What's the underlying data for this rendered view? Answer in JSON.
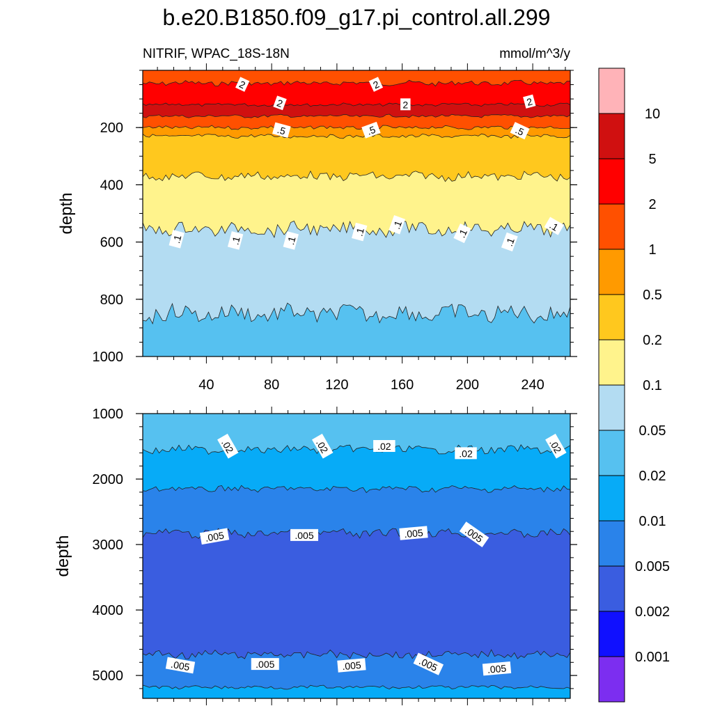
{
  "title": "b.e20.B1850.f09_g17.pi_control.all.299",
  "subtitle_left": "NITRIF, WPAC_18S-18N",
  "subtitle_right": "mmol/m^3/y",
  "chart_data": [
    {
      "type": "heatmap",
      "panel": "upper",
      "ylabel": "depth",
      "xlim": [
        1,
        263
      ],
      "ylim": [
        1000,
        0
      ],
      "x_ticks": [
        "40",
        "80",
        "120",
        "160",
        "200",
        "240"
      ],
      "y_ticks": [
        "200",
        "400",
        "600",
        "800",
        "1000"
      ],
      "contour_levels": [
        {
          "level": 2,
          "mean_depth": 135
        },
        {
          "level": 1,
          "mean_depth": 165
        },
        {
          "level": 0.5,
          "mean_depth": 225
        },
        {
          "level": 0.2,
          "mean_depth": 365
        },
        {
          "level": 0.1,
          "mean_depth": 560
        },
        {
          "level": 0.05,
          "mean_depth": 850
        }
      ],
      "contour_labels": [
        ".5",
        ".5",
        ".5",
        ".1",
        ".1",
        ".1",
        ".1",
        ".1",
        ".1",
        ".1"
      ]
    },
    {
      "type": "heatmap",
      "panel": "lower",
      "ylabel": "depth",
      "xlim": [
        1,
        263
      ],
      "ylim": [
        5350,
        1000
      ],
      "y_ticks": [
        "1000",
        "2000",
        "3000",
        "4000",
        "5000"
      ],
      "contour_levels": [
        {
          "level": 0.02,
          "mean_depth": 1600
        },
        {
          "level": 0.01,
          "mean_depth": 2150
        },
        {
          "level": 0.005,
          "mean_depth": 2850
        },
        {
          "level": 0.002,
          "mean_depth": 4700
        },
        {
          "level": 0.005,
          "mean_depth": 4800
        },
        {
          "level": 0.01,
          "mean_depth": 5200
        }
      ],
      "contour_labels": [
        ".02",
        ".02",
        ".02",
        ".02",
        ".02",
        ".005",
        ".005",
        ".005",
        ".005",
        ".005",
        ".005",
        ".005",
        ".005",
        ".005"
      ]
    }
  ],
  "colorbar": {
    "labels": [
      "10",
      "5",
      "2",
      "1",
      "0.5",
      "0.2",
      "0.1",
      "0.05",
      "0.02",
      "0.01",
      "0.005",
      "0.002",
      "0.001"
    ],
    "colors": [
      "#ffb3b8",
      "#d01010",
      "#ff0000",
      "#ff5000",
      "#ff9a00",
      "#ffc81e",
      "#fff38c",
      "#b3dcf2",
      "#56c1f0",
      "#07abf7",
      "#2a83ea",
      "#3a5de0",
      "#1010ff",
      "#7c2ef0"
    ]
  }
}
